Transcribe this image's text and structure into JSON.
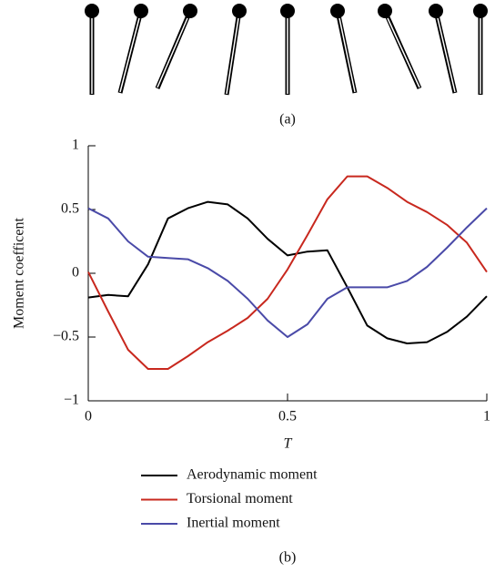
{
  "panel_a": {
    "label": "(a)"
  },
  "chart_data": {
    "type": "line",
    "xlabel": "T",
    "ylabel": "Moment coefficent",
    "panel_label": "(b)",
    "x": [
      0,
      0.05,
      0.1,
      0.15,
      0.2,
      0.25,
      0.3,
      0.35,
      0.4,
      0.45,
      0.5,
      0.55,
      0.6,
      0.65,
      0.7,
      0.75,
      0.8,
      0.85,
      0.9,
      0.95,
      1
    ],
    "series": [
      {
        "name": "Aerodynamic moment",
        "color": "#000000",
        "values": [
          -0.19,
          -0.17,
          -0.18,
          0.07,
          0.43,
          0.51,
          0.56,
          0.54,
          0.43,
          0.27,
          0.14,
          0.17,
          0.18,
          -0.11,
          -0.41,
          -0.51,
          -0.55,
          -0.54,
          -0.46,
          -0.34,
          -0.18
        ]
      },
      {
        "name": "Torsional moment",
        "color": "#c8281e",
        "values": [
          0.01,
          -0.3,
          -0.6,
          -0.75,
          -0.75,
          -0.65,
          -0.54,
          -0.45,
          -0.35,
          -0.2,
          0.03,
          0.3,
          0.58,
          0.76,
          0.76,
          0.67,
          0.56,
          0.48,
          0.38,
          0.24,
          0.01
        ]
      },
      {
        "name": "Inertial moment",
        "color": "#4a4aa8",
        "values": [
          0.51,
          0.43,
          0.25,
          0.13,
          0.12,
          0.11,
          0.04,
          -0.06,
          -0.2,
          -0.37,
          -0.5,
          -0.4,
          -0.2,
          -0.11,
          -0.11,
          -0.11,
          -0.06,
          0.05,
          0.2,
          0.36,
          0.51
        ]
      }
    ],
    "xlim": [
      0,
      1
    ],
    "xticks": [
      0,
      0.5,
      1
    ],
    "ylim": [
      -1,
      1
    ],
    "yticks": [
      {
        "value": -1,
        "label": "−1"
      },
      {
        "value": -0.5,
        "label": "−0.5"
      },
      0,
      0.5,
      1
    ]
  }
}
